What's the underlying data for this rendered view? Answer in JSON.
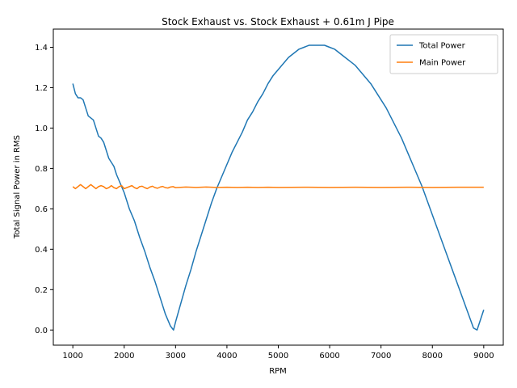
{
  "chart_data": {
    "type": "line",
    "title": "Stock Exhaust vs. Stock Exhaust + 0.61m J Pipe",
    "xlabel": "RPM",
    "ylabel": "Total Signal Power in RMS",
    "xlim": [
      620,
      9380
    ],
    "ylim": [
      -0.075,
      1.49
    ],
    "xticks": [
      1000,
      2000,
      3000,
      4000,
      5000,
      6000,
      7000,
      8000,
      9000
    ],
    "xtick_labels": [
      "1000",
      "2000",
      "3000",
      "4000",
      "5000",
      "6000",
      "7000",
      "8000",
      "9000"
    ],
    "yticks": [
      0.0,
      0.2,
      0.4,
      0.6,
      0.8,
      1.0,
      1.2,
      1.4
    ],
    "ytick_labels": [
      "0.0",
      "0.2",
      "0.4",
      "0.6",
      "0.8",
      "1.0",
      "1.2",
      "1.4"
    ],
    "grid": false,
    "legend_position": "top-right",
    "series": [
      {
        "name": "Total Power",
        "color": "#1f77b4",
        "x": [
          1000,
          1050,
          1100,
          1150,
          1200,
          1250,
          1300,
          1350,
          1400,
          1450,
          1500,
          1550,
          1600,
          1650,
          1700,
          1750,
          1800,
          1850,
          1900,
          1950,
          2000,
          2100,
          2200,
          2300,
          2400,
          2500,
          2600,
          2700,
          2800,
          2900,
          2960,
          3000,
          3100,
          3200,
          3300,
          3400,
          3500,
          3600,
          3700,
          3800,
          3900,
          4000,
          4100,
          4200,
          4300,
          4400,
          4500,
          4600,
          4700,
          4800,
          4900,
          5000,
          5100,
          5200,
          5300,
          5400,
          5500,
          5600,
          5700,
          5800,
          5900,
          6000,
          6100,
          6200,
          6300,
          6400,
          6500,
          6600,
          6700,
          6800,
          6900,
          7000,
          7100,
          7200,
          7300,
          7400,
          7500,
          7600,
          7700,
          7800,
          7900,
          8000,
          8100,
          8200,
          8300,
          8400,
          8500,
          8600,
          8700,
          8800,
          8870,
          9000
        ],
        "values": [
          1.22,
          1.17,
          1.15,
          1.15,
          1.14,
          1.1,
          1.06,
          1.05,
          1.04,
          1.0,
          0.96,
          0.95,
          0.93,
          0.89,
          0.85,
          0.83,
          0.81,
          0.77,
          0.74,
          0.71,
          0.68,
          0.6,
          0.54,
          0.46,
          0.39,
          0.31,
          0.24,
          0.16,
          0.08,
          0.02,
          0.0,
          0.04,
          0.13,
          0.22,
          0.3,
          0.39,
          0.47,
          0.55,
          0.63,
          0.7,
          0.76,
          0.82,
          0.88,
          0.93,
          0.98,
          1.04,
          1.08,
          1.13,
          1.17,
          1.22,
          1.26,
          1.29,
          1.32,
          1.35,
          1.37,
          1.39,
          1.4,
          1.41,
          1.41,
          1.41,
          1.41,
          1.4,
          1.39,
          1.37,
          1.35,
          1.33,
          1.31,
          1.28,
          1.25,
          1.22,
          1.18,
          1.14,
          1.1,
          1.05,
          1.0,
          0.95,
          0.89,
          0.83,
          0.77,
          0.71,
          0.64,
          0.57,
          0.5,
          0.43,
          0.36,
          0.29,
          0.22,
          0.15,
          0.08,
          0.01,
          0.0,
          0.1
        ]
      },
      {
        "name": "Main Power",
        "color": "#ff7f0e",
        "x": [
          1000,
          1050,
          1100,
          1150,
          1200,
          1250,
          1300,
          1350,
          1400,
          1450,
          1500,
          1550,
          1600,
          1650,
          1700,
          1750,
          1800,
          1850,
          1900,
          1950,
          2000,
          2050,
          2100,
          2150,
          2200,
          2250,
          2300,
          2350,
          2400,
          2450,
          2500,
          2550,
          2600,
          2650,
          2700,
          2750,
          2800,
          2850,
          2900,
          2950,
          3000,
          3200,
          3400,
          3600,
          3800,
          4000,
          4200,
          4400,
          4600,
          4800,
          5000,
          5500,
          6000,
          6500,
          7000,
          7500,
          8000,
          8500,
          9000
        ],
        "values": [
          0.71,
          0.7,
          0.71,
          0.72,
          0.71,
          0.7,
          0.71,
          0.72,
          0.71,
          0.7,
          0.71,
          0.715,
          0.71,
          0.7,
          0.705,
          0.715,
          0.705,
          0.7,
          0.71,
          0.715,
          0.7,
          0.705,
          0.71,
          0.715,
          0.705,
          0.7,
          0.71,
          0.712,
          0.705,
          0.7,
          0.708,
          0.712,
          0.705,
          0.702,
          0.708,
          0.711,
          0.705,
          0.703,
          0.708,
          0.71,
          0.705,
          0.708,
          0.706,
          0.708,
          0.706,
          0.707,
          0.706,
          0.707,
          0.706,
          0.707,
          0.706,
          0.707,
          0.706,
          0.707,
          0.706,
          0.707,
          0.706,
          0.707,
          0.707
        ]
      }
    ]
  }
}
